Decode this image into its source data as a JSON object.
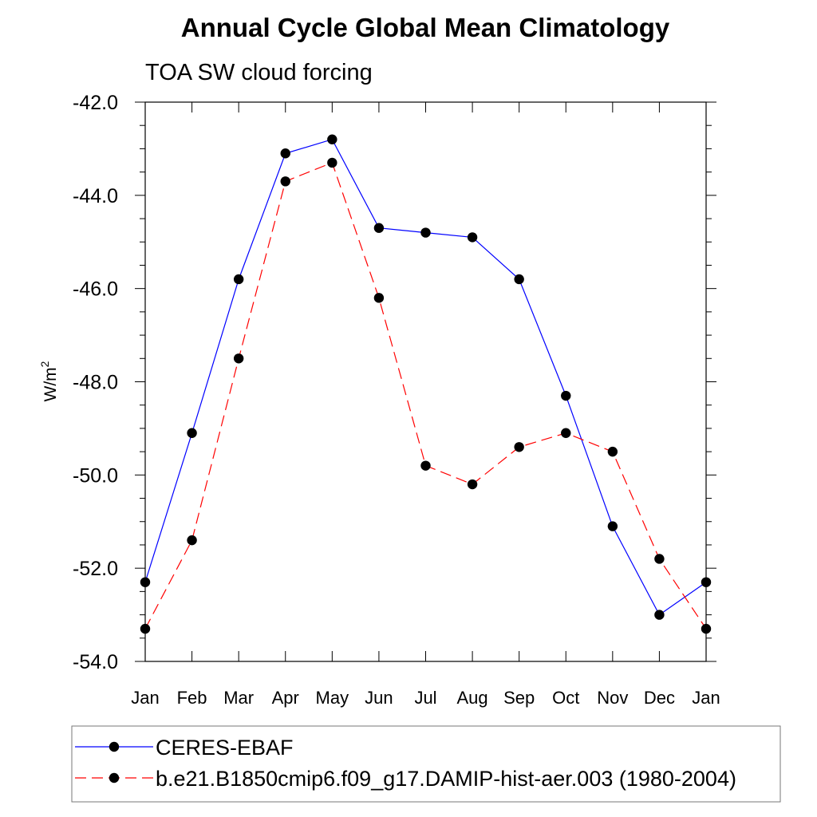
{
  "chart_data": {
    "type": "line",
    "title": "Annual Cycle Global Mean Climatology",
    "subtitle": "TOA SW cloud forcing",
    "ylabel_base": "W/m",
    "ylabel_sup": "2",
    "xlabel": "",
    "categories": [
      "Jan",
      "Feb",
      "Mar",
      "Apr",
      "May",
      "Jun",
      "Jul",
      "Aug",
      "Sep",
      "Oct",
      "Nov",
      "Dec",
      "Jan"
    ],
    "ylim": [
      -54.0,
      -42.0
    ],
    "yticks": [
      "-54.0",
      "-52.0",
      "-50.0",
      "-48.0",
      "-46.0",
      "-44.0",
      "-42.0"
    ],
    "ytick_values": [
      -54,
      -52,
      -50,
      -48,
      -46,
      -44,
      -42
    ],
    "grid": false,
    "legend_position": "bottom",
    "series": [
      {
        "name": "CERES-EBAF",
        "color": "#0000ff",
        "dash": "solid",
        "values": [
          -52.3,
          -49.1,
          -45.8,
          -43.1,
          -42.8,
          -44.7,
          -44.8,
          -44.9,
          -45.8,
          -48.3,
          -51.1,
          -53.0,
          -52.3
        ]
      },
      {
        "name": "b.e21.B1850cmip6.f09_g17.DAMIP-hist-aer.003 (1980-2004)",
        "color": "#ff0000",
        "dash": "dashed",
        "values": [
          -53.3,
          -51.4,
          -47.5,
          -43.7,
          -43.3,
          -46.2,
          -49.8,
          -50.2,
          -49.4,
          -49.1,
          -49.5,
          -51.8,
          -53.3
        ]
      }
    ],
    "marker_color": "#000000"
  }
}
